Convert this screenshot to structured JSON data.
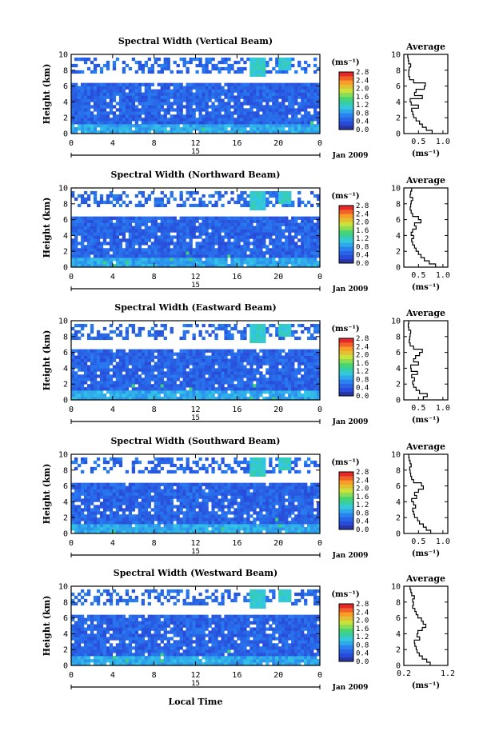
{
  "chart_data": [
    {
      "type": "heatmap",
      "title": "Spectral Width (Vertical Beam)",
      "ylabel": "Height (km)",
      "x_ticks": [
        "0",
        "4",
        "8",
        "12",
        "16",
        "20",
        "0"
      ],
      "y_ticks": [
        "0",
        "2",
        "4",
        "6",
        "8",
        "10"
      ],
      "xlim": [
        0,
        24
      ],
      "ylim": [
        0,
        10
      ],
      "day_label": "15",
      "date_label": "Jan 2009",
      "colorbar": {
        "unit": "(ms⁻¹)",
        "ticks": [
          "0.0",
          "0.4",
          "0.8",
          "1.2",
          "1.6",
          "2.0",
          "2.4",
          "2.8"
        ],
        "range": [
          0,
          2.8
        ]
      },
      "profile": {
        "title": "Average",
        "xlabel": "(ms⁻¹)",
        "x_ticks": [
          "0.5",
          "1.0"
        ],
        "x_tick_values": [
          0.5,
          1.0
        ],
        "xlim": [
          0.2,
          1.1
        ],
        "height": [
          0.2,
          0.6,
          1.0,
          1.4,
          1.8,
          2.2,
          2.6,
          3.0,
          3.4,
          3.8,
          4.2,
          4.6,
          5.0,
          5.4,
          5.8,
          6.2,
          6.6,
          7.0,
          7.4,
          7.8,
          8.2,
          8.6,
          9.0,
          9.4,
          9.8
        ],
        "width": [
          0.78,
          0.66,
          0.58,
          0.52,
          0.45,
          0.4,
          0.38,
          0.36,
          0.5,
          0.35,
          0.33,
          0.58,
          0.42,
          0.45,
          0.62,
          0.64,
          0.4,
          0.32,
          0.3,
          0.3,
          0.31,
          0.34,
          0.3,
          0.29,
          0.28
        ]
      }
    },
    {
      "type": "heatmap",
      "title": "Spectral Width (Northward Beam)",
      "ylabel": "Height (km)",
      "x_ticks": [
        "0",
        "4",
        "8",
        "12",
        "16",
        "20",
        "0"
      ],
      "y_ticks": [
        "0",
        "2",
        "4",
        "6",
        "8",
        "10"
      ],
      "xlim": [
        0,
        24
      ],
      "ylim": [
        0,
        10
      ],
      "day_label": "15",
      "date_label": "Jan 2009",
      "colorbar": {
        "unit": "(ms⁻¹)",
        "ticks": [
          "0.0",
          "0.4",
          "0.8",
          "1.2",
          "1.6",
          "2.0",
          "2.4",
          "2.8"
        ],
        "range": [
          0,
          2.8
        ]
      },
      "profile": {
        "title": "Average",
        "xlabel": "(ms⁻¹)",
        "x_ticks": [
          "0.5",
          "1.0"
        ],
        "x_tick_values": [
          0.5,
          1.0
        ],
        "xlim": [
          0.2,
          1.1
        ],
        "height": [
          0.2,
          0.6,
          1.0,
          1.4,
          1.8,
          2.2,
          2.6,
          3.0,
          3.4,
          3.8,
          4.2,
          4.6,
          5.0,
          5.4,
          5.8,
          6.2,
          6.6,
          7.0,
          7.4,
          7.8,
          8.2,
          8.6,
          9.0,
          9.4,
          9.8
        ],
        "width": [
          0.85,
          0.72,
          0.62,
          0.55,
          0.5,
          0.45,
          0.42,
          0.38,
          0.36,
          0.4,
          0.35,
          0.38,
          0.45,
          0.42,
          0.55,
          0.5,
          0.38,
          0.35,
          0.33,
          0.34,
          0.35,
          0.38,
          0.33,
          0.34,
          0.36
        ]
      }
    },
    {
      "type": "heatmap",
      "title": "Spectral Width (Eastward Beam)",
      "ylabel": "Height (km)",
      "x_ticks": [
        "0",
        "4",
        "8",
        "12",
        "16",
        "20",
        "0"
      ],
      "y_ticks": [
        "0",
        "2",
        "4",
        "6",
        "8",
        "10"
      ],
      "xlim": [
        0,
        24
      ],
      "ylim": [
        0,
        10
      ],
      "day_label": "15",
      "date_label": "Jan 2009",
      "colorbar": {
        "unit": "(ms⁻¹)",
        "ticks": [
          "0.0",
          "0.4",
          "0.8",
          "1.2",
          "1.6",
          "2.0",
          "2.4",
          "2.8"
        ],
        "range": [
          0,
          2.8
        ]
      },
      "profile": {
        "title": "Average",
        "xlabel": "(ms⁻¹)",
        "x_ticks": [
          "0.5",
          "1.0"
        ],
        "x_tick_values": [
          0.5,
          1.0
        ],
        "xlim": [
          0.2,
          1.1
        ],
        "height": [
          0.2,
          0.6,
          1.0,
          1.4,
          1.8,
          2.2,
          2.6,
          3.0,
          3.4,
          3.8,
          4.2,
          4.6,
          5.0,
          5.4,
          5.8,
          6.2,
          6.6,
          7.0,
          7.4,
          7.8,
          8.2,
          8.6,
          9.0,
          9.4,
          9.8
        ],
        "width": [
          0.6,
          0.68,
          0.52,
          0.45,
          0.4,
          0.38,
          0.42,
          0.36,
          0.48,
          0.35,
          0.34,
          0.5,
          0.4,
          0.44,
          0.52,
          0.58,
          0.4,
          0.33,
          0.31,
          0.32,
          0.33,
          0.34,
          0.3,
          0.29,
          0.3
        ]
      }
    },
    {
      "type": "heatmap",
      "title": "Spectral Width (Southward Beam)",
      "ylabel": "Height (km)",
      "x_ticks": [
        "0",
        "4",
        "8",
        "12",
        "16",
        "20",
        "0"
      ],
      "y_ticks": [
        "0",
        "2",
        "4",
        "6",
        "8",
        "10"
      ],
      "xlim": [
        0,
        24
      ],
      "ylim": [
        0,
        10
      ],
      "day_label": "15",
      "date_label": "Jan 2009",
      "colorbar": {
        "unit": "(ms⁻¹)",
        "ticks": [
          "0.0",
          "0.4",
          "0.8",
          "1.2",
          "1.6",
          "2.0",
          "2.4",
          "2.8"
        ],
        "range": [
          0,
          2.8
        ]
      },
      "profile": {
        "title": "Average",
        "xlabel": "(ms⁻¹)",
        "x_ticks": [
          "0.5",
          "1.0"
        ],
        "x_tick_values": [
          0.5,
          1.0
        ],
        "xlim": [
          0.2,
          1.1
        ],
        "height": [
          0.2,
          0.6,
          1.0,
          1.4,
          1.8,
          2.2,
          2.6,
          3.0,
          3.4,
          3.8,
          4.2,
          4.6,
          5.0,
          5.4,
          5.8,
          6.2,
          6.6,
          7.0,
          7.4,
          7.8,
          8.2,
          8.6,
          9.0,
          9.4,
          9.8
        ],
        "width": [
          0.75,
          0.66,
          0.6,
          0.52,
          0.48,
          0.42,
          0.4,
          0.38,
          0.44,
          0.4,
          0.36,
          0.46,
          0.42,
          0.5,
          0.6,
          0.56,
          0.4,
          0.36,
          0.34,
          0.33,
          0.32,
          0.35,
          0.33,
          0.31,
          0.3
        ]
      }
    },
    {
      "type": "heatmap",
      "title": "Spectral Width (Westward Beam)",
      "ylabel": "Height (km)",
      "xlabel": "Local Time",
      "x_ticks": [
        "0",
        "4",
        "8",
        "12",
        "16",
        "20",
        "0"
      ],
      "y_ticks": [
        "0",
        "2",
        "4",
        "6",
        "8",
        "10"
      ],
      "xlim": [
        0,
        24
      ],
      "ylim": [
        0,
        10
      ],
      "day_label": "15",
      "date_label": "Jan 2009",
      "colorbar": {
        "unit": "(ms⁻¹)",
        "ticks": [
          "0.0",
          "0.4",
          "0.8",
          "1.2",
          "1.6",
          "2.0",
          "2.4",
          "2.8"
        ],
        "range": [
          0,
          2.8
        ]
      },
      "profile": {
        "title": "Average",
        "xlabel": "(ms⁻¹)",
        "x_ticks": [
          "0.2",
          "1.2"
        ],
        "x_tick_values": [
          0.2,
          1.2
        ],
        "xlim": [
          0.2,
          1.2
        ],
        "height": [
          0.2,
          0.6,
          1.0,
          1.4,
          1.8,
          2.2,
          2.6,
          3.0,
          3.4,
          3.8,
          4.2,
          4.6,
          5.0,
          5.4,
          5.8,
          6.2,
          6.6,
          7.0,
          7.4,
          7.8,
          8.2,
          8.6,
          9.0,
          9.4,
          9.8
        ],
        "width": [
          0.8,
          0.72,
          0.62,
          0.55,
          0.5,
          0.48,
          0.45,
          0.44,
          0.56,
          0.5,
          0.52,
          0.62,
          0.7,
          0.64,
          0.6,
          0.52,
          0.48,
          0.45,
          0.4,
          0.42,
          0.4,
          0.44,
          0.38,
          0.36,
          0.34
        ]
      }
    }
  ]
}
